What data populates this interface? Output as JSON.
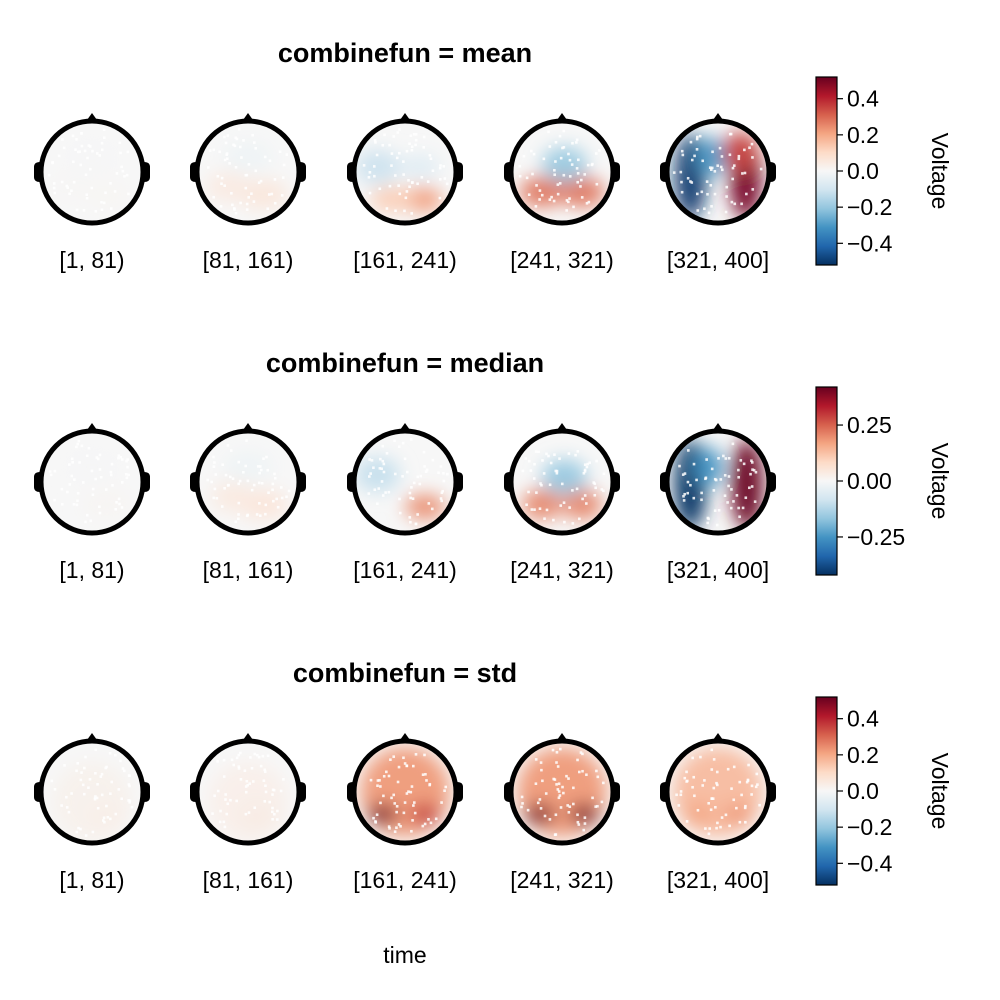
{
  "chart_data": [
    {
      "type": "heatmap",
      "title": "combinefun = mean",
      "xlabel": "time",
      "bins": [
        "[1, 81)",
        "[81, 161)",
        "[161, 241)",
        "[241, 321)",
        "[321, 400]"
      ],
      "colorbar": {
        "label": "Voltage",
        "range": [
          -0.52,
          0.52
        ],
        "ticks": [
          0.4,
          0.2,
          0.0,
          -0.2,
          -0.4
        ],
        "tick_labels": [
          "0.4",
          "0.2",
          "0.0",
          "−0.2",
          "−0.4"
        ]
      },
      "peak_values": [
        0.01,
        0.06,
        0.22,
        0.28,
        0.5
      ]
    },
    {
      "type": "heatmap",
      "title": "combinefun = median",
      "xlabel": "time",
      "bins": [
        "[1, 81)",
        "[81, 161)",
        "[161, 241)",
        "[241, 321)",
        "[321, 400]"
      ],
      "colorbar": {
        "label": "Voltage",
        "range": [
          -0.42,
          0.42
        ],
        "ticks": [
          0.25,
          0.0,
          -0.25
        ],
        "tick_labels": [
          "0.25",
          "0.00",
          "−0.25"
        ]
      },
      "peak_values": [
        0.01,
        0.05,
        0.2,
        0.23,
        0.42
      ]
    },
    {
      "type": "heatmap",
      "title": "combinefun = std",
      "xlabel": "time",
      "bins": [
        "[1, 81)",
        "[81, 161)",
        "[161, 241)",
        "[241, 321)",
        "[321, 400]"
      ],
      "colorbar": {
        "label": "Voltage",
        "range": [
          -0.52,
          0.52
        ],
        "ticks": [
          0.4,
          0.2,
          0.0,
          -0.2,
          -0.4
        ],
        "tick_labels": [
          "0.4",
          "0.2",
          "0.0",
          "−0.2",
          "−0.4"
        ]
      },
      "peak_values": [
        0.03,
        0.04,
        0.5,
        0.5,
        0.3
      ]
    }
  ],
  "xlabel": "time",
  "colors": {
    "negative": "#053061",
    "neutral": "#f7f7f7",
    "positive": "#67001f",
    "head_outline": "#000000",
    "electrode": "#ffffff"
  }
}
